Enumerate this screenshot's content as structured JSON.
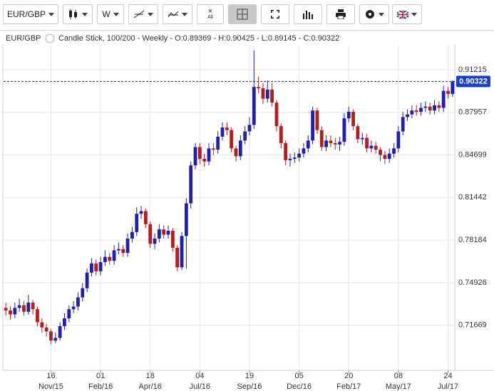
{
  "toolbar": {
    "symbol": "EUR/GBP",
    "period": "W",
    "clear": "All"
  },
  "chart_data": {
    "type": "candlestick",
    "symbol": "EUR/GBP",
    "info": "Candle Stick, 100/200 - Weekly - O:0.89369 - H:0.90425 - L:0.89145 - C:0.90322",
    "up_color": "#2020b0",
    "down_color": "#b41e1e",
    "grid": true,
    "ylim": [
      0.6822,
      0.9312
    ],
    "yticks": [
      0.71669,
      0.74926,
      0.78184,
      0.81442,
      0.84699,
      0.87957,
      0.91215
    ],
    "xlim": [
      0,
      100
    ],
    "xticks": [
      {
        "value": 10,
        "label": "16"
      },
      {
        "value": 21,
        "label": "01"
      },
      {
        "value": 32,
        "label": "18"
      },
      {
        "value": 43,
        "label": "04"
      },
      {
        "value": 54,
        "label": "19"
      },
      {
        "value": 65,
        "label": "05"
      },
      {
        "value": 76,
        "label": "20"
      },
      {
        "value": 87,
        "label": "08"
      },
      {
        "value": 98,
        "label": "24"
      }
    ],
    "xtick_months": [
      "Nov/15",
      "Feb/16",
      "Apr/16",
      "Jul/16",
      "Sep/16",
      "Dec/16",
      "Feb/17",
      "May/17",
      "Jul/17"
    ],
    "last_price": 0.90322,
    "open": [
      0.73,
      0.728,
      0.725,
      0.73,
      0.732,
      0.727,
      0.734,
      0.729,
      0.719,
      0.715,
      0.712,
      0.705,
      0.707,
      0.716,
      0.722,
      0.729,
      0.731,
      0.738,
      0.745,
      0.757,
      0.764,
      0.758,
      0.765,
      0.769,
      0.766,
      0.774,
      0.775,
      0.772,
      0.783,
      0.788,
      0.802,
      0.804,
      0.794,
      0.779,
      0.783,
      0.79,
      0.786,
      0.789,
      0.776,
      0.761,
      0.785,
      0.81,
      0.839,
      0.853,
      0.844,
      0.842,
      0.852,
      0.851,
      0.861,
      0.868,
      0.866,
      0.852,
      0.846,
      0.858,
      0.865,
      0.87,
      0.899,
      0.898,
      0.89,
      0.897,
      0.887,
      0.869,
      0.856,
      0.843,
      0.844,
      0.845,
      0.848,
      0.852,
      0.858,
      0.881,
      0.866,
      0.853,
      0.858,
      0.856,
      0.855,
      0.857,
      0.875,
      0.88,
      0.869,
      0.859,
      0.86,
      0.852,
      0.854,
      0.851,
      0.847,
      0.844,
      0.848,
      0.852,
      0.865,
      0.876,
      0.878,
      0.881,
      0.88,
      0.883,
      0.884,
      0.881,
      0.885,
      0.883,
      0.896,
      0.89369
    ],
    "high": [
      0.734,
      0.731,
      0.734,
      0.737,
      0.735,
      0.74,
      0.736,
      0.731,
      0.722,
      0.718,
      0.714,
      0.711,
      0.719,
      0.726,
      0.732,
      0.735,
      0.742,
      0.749,
      0.76,
      0.768,
      0.767,
      0.769,
      0.774,
      0.772,
      0.778,
      0.78,
      0.778,
      0.787,
      0.792,
      0.807,
      0.808,
      0.806,
      0.796,
      0.787,
      0.794,
      0.793,
      0.793,
      0.791,
      0.778,
      0.788,
      0.814,
      0.842,
      0.856,
      0.856,
      0.848,
      0.856,
      0.856,
      0.865,
      0.872,
      0.872,
      0.868,
      0.854,
      0.862,
      0.869,
      0.876,
      0.927,
      0.907,
      0.902,
      0.904,
      0.902,
      0.889,
      0.871,
      0.858,
      0.848,
      0.849,
      0.852,
      0.856,
      0.862,
      0.884,
      0.883,
      0.869,
      0.862,
      0.862,
      0.86,
      0.861,
      0.879,
      0.884,
      0.882,
      0.871,
      0.864,
      0.863,
      0.858,
      0.857,
      0.853,
      0.85,
      0.852,
      0.856,
      0.869,
      0.88,
      0.882,
      0.885,
      0.885,
      0.887,
      0.888,
      0.887,
      0.889,
      0.888,
      0.9,
      0.899,
      0.90425
    ],
    "low": [
      0.724,
      0.721,
      0.722,
      0.727,
      0.724,
      0.725,
      0.725,
      0.716,
      0.711,
      0.708,
      0.702,
      0.703,
      0.705,
      0.713,
      0.719,
      0.726,
      0.728,
      0.735,
      0.742,
      0.754,
      0.755,
      0.755,
      0.762,
      0.763,
      0.763,
      0.771,
      0.769,
      0.769,
      0.78,
      0.785,
      0.798,
      0.791,
      0.776,
      0.775,
      0.78,
      0.783,
      0.783,
      0.773,
      0.758,
      0.759,
      0.76,
      0.806,
      0.836,
      0.84,
      0.838,
      0.839,
      0.847,
      0.848,
      0.858,
      0.862,
      0.849,
      0.842,
      0.843,
      0.855,
      0.862,
      0.867,
      0.894,
      0.886,
      0.887,
      0.884,
      0.865,
      0.852,
      0.839,
      0.838,
      0.841,
      0.842,
      0.845,
      0.849,
      0.855,
      0.863,
      0.85,
      0.85,
      0.853,
      0.851,
      0.85,
      0.854,
      0.872,
      0.866,
      0.856,
      0.855,
      0.849,
      0.849,
      0.848,
      0.842,
      0.84,
      0.841,
      0.845,
      0.849,
      0.862,
      0.873,
      0.875,
      0.877,
      0.877,
      0.88,
      0.878,
      0.878,
      0.88,
      0.88,
      0.89,
      0.89145
    ],
    "close": [
      0.728,
      0.725,
      0.73,
      0.732,
      0.727,
      0.734,
      0.729,
      0.719,
      0.715,
      0.712,
      0.705,
      0.707,
      0.716,
      0.722,
      0.729,
      0.731,
      0.738,
      0.745,
      0.757,
      0.764,
      0.758,
      0.765,
      0.769,
      0.766,
      0.774,
      0.775,
      0.772,
      0.783,
      0.788,
      0.802,
      0.804,
      0.794,
      0.779,
      0.783,
      0.79,
      0.786,
      0.789,
      0.776,
      0.761,
      0.785,
      0.81,
      0.839,
      0.853,
      0.844,
      0.842,
      0.852,
      0.851,
      0.861,
      0.868,
      0.866,
      0.852,
      0.846,
      0.858,
      0.865,
      0.87,
      0.899,
      0.898,
      0.89,
      0.897,
      0.887,
      0.869,
      0.856,
      0.843,
      0.844,
      0.845,
      0.848,
      0.852,
      0.858,
      0.881,
      0.866,
      0.853,
      0.858,
      0.856,
      0.855,
      0.857,
      0.875,
      0.88,
      0.869,
      0.859,
      0.86,
      0.852,
      0.854,
      0.851,
      0.847,
      0.844,
      0.848,
      0.852,
      0.865,
      0.876,
      0.878,
      0.881,
      0.88,
      0.883,
      0.884,
      0.881,
      0.885,
      0.883,
      0.896,
      0.8937,
      0.90322
    ]
  }
}
